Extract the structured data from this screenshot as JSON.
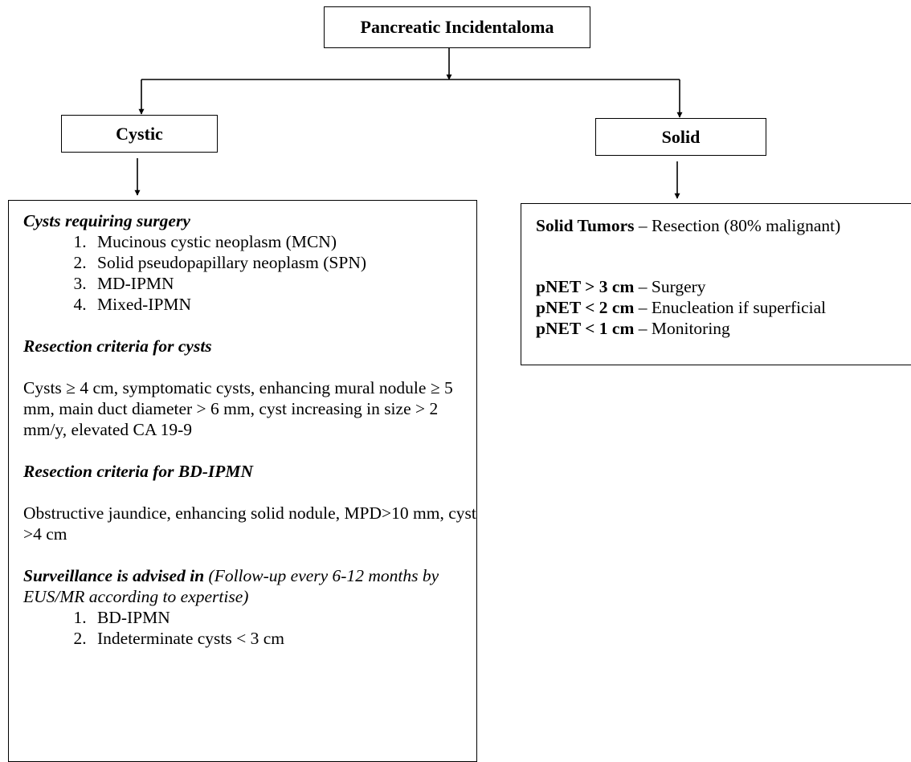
{
  "root": {
    "label": "Pancreatic Incidentaloma"
  },
  "cystic": {
    "label": "Cystic",
    "surgery_heading": "Cysts requiring surgery",
    "surgery_items": [
      "Mucinous cystic neoplasm (MCN)",
      "Solid pseudopapillary neoplasm (SPN)",
      "MD-IPMN",
      "Mixed-IPMN"
    ],
    "resection_cysts_heading": "Resection criteria for cysts",
    "resection_cysts_text": "Cysts ≥ 4 cm, symptomatic cysts, enhancing mural nodule ≥ 5 mm, main duct diameter > 6 mm, cyst increasing in size > 2 mm/y, elevated CA 19-9",
    "resection_bd_heading": "Resection criteria for BD-IPMN",
    "resection_bd_text": "Obstructive jaundice, enhancing solid nodule, MPD>10 mm, cyst >4 cm",
    "surveillance_heading": "Surveillance is advised in",
    "surveillance_note": "(Follow-up every 6-12 months by EUS/MR according to expertise)",
    "surveillance_items": [
      "BD-IPMN",
      "Indeterminate cysts < 3 cm"
    ]
  },
  "solid": {
    "label": "Solid",
    "tumors_term": "Solid Tumors",
    "tumors_text": " – Resection (80% malignant)",
    "pnet_rules": [
      {
        "term": "pNET > 3 cm",
        "text": " – Surgery"
      },
      {
        "term": "pNET < 2 cm",
        "text": " – Enucleation if superficial"
      },
      {
        "term": "pNET < 1 cm",
        "text": " – Monitoring"
      }
    ]
  }
}
